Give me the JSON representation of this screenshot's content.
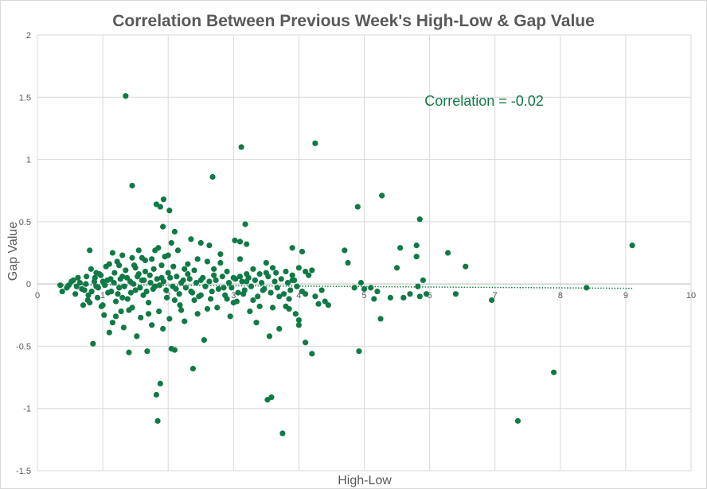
{
  "chart_data": {
    "type": "scatter",
    "title": "Correlation Between Previous Week's High-Low & Gap Value",
    "xlabel": "High-Low",
    "ylabel": "Gap Value",
    "xlim": [
      0,
      10
    ],
    "ylim": [
      -1.5,
      2
    ],
    "x_ticks": [
      "0",
      "1",
      "2",
      "3",
      "4",
      "5",
      "6",
      "7",
      "8",
      "9",
      "10"
    ],
    "y_ticks": [
      "2",
      "1.5",
      "1",
      "0.5",
      "0",
      "-0.5",
      "-1",
      "-1.5"
    ],
    "grid": "vertical and horizontal major gridlines",
    "annotation": "Correlation = -0.02",
    "colors": {
      "marker": "#107a45",
      "trendline": "#107a45",
      "grid": "#d9d9d9",
      "text": "#595959"
    },
    "trendline": {
      "type": "linear",
      "style": "dotted",
      "x": [
        0.3,
        9.1
      ],
      "y": [
        -0.005,
        -0.035
      ]
    },
    "series": [
      {
        "points": [
          [
            1.35,
            1.51
          ],
          [
            1.45,
            0.79
          ],
          [
            1.82,
            0.64
          ],
          [
            1.88,
            0.62
          ],
          [
            1.93,
            0.68
          ],
          [
            2.02,
            0.59
          ],
          [
            2.68,
            0.86
          ],
          [
            3.12,
            1.1
          ],
          [
            4.25,
            1.13
          ],
          [
            4.9,
            0.62
          ],
          [
            5.27,
            0.71
          ],
          [
            5.85,
            0.52
          ],
          [
            3.18,
            0.48
          ],
          [
            2.1,
            0.42
          ],
          [
            1.92,
            0.46
          ],
          [
            2.35,
            0.36
          ],
          [
            2.5,
            0.33
          ],
          [
            2.63,
            0.31
          ],
          [
            3.02,
            0.35
          ],
          [
            3.1,
            0.34
          ],
          [
            3.2,
            0.32
          ],
          [
            3.9,
            0.29
          ],
          [
            4.7,
            0.27
          ],
          [
            4.75,
            0.17
          ],
          [
            5.55,
            0.29
          ],
          [
            5.8,
            0.31
          ],
          [
            5.8,
            0.22
          ],
          [
            5.5,
            0.13
          ],
          [
            6.28,
            0.25
          ],
          [
            6.55,
            0.14
          ],
          [
            9.1,
            0.31
          ],
          [
            0.8,
            0.27
          ],
          [
            1.15,
            0.25
          ],
          [
            1.3,
            0.23
          ],
          [
            1.55,
            0.27
          ],
          [
            1.75,
            0.2
          ],
          [
            0.35,
            -0.01
          ],
          [
            0.38,
            -0.06
          ],
          [
            0.45,
            -0.03
          ],
          [
            0.55,
            0.03
          ],
          [
            0.6,
            -0.02
          ],
          [
            0.65,
            0.01
          ],
          [
            0.7,
            -0.17
          ],
          [
            0.72,
            -0.05
          ],
          [
            0.75,
            0.06
          ],
          [
            0.78,
            -0.09
          ],
          [
            0.8,
            -0.15
          ],
          [
            0.82,
            0.12
          ],
          [
            0.85,
            -0.48
          ],
          [
            0.88,
            0.05
          ],
          [
            0.9,
            -0.02
          ],
          [
            0.92,
            -0.11
          ],
          [
            0.95,
            0.08
          ],
          [
            0.98,
            -0.18
          ],
          [
            1.0,
            0.02
          ],
          [
            1.02,
            -0.25
          ],
          [
            1.05,
            0.14
          ],
          [
            1.08,
            -0.07
          ],
          [
            1.1,
            -0.39
          ],
          [
            1.12,
            0.04
          ],
          [
            1.15,
            -0.31
          ],
          [
            1.18,
            0.09
          ],
          [
            1.2,
            -0.14
          ],
          [
            1.22,
            0.18
          ],
          [
            1.25,
            -0.03
          ],
          [
            1.28,
            -0.22
          ],
          [
            1.3,
            0.06
          ],
          [
            1.32,
            -0.35
          ],
          [
            1.35,
            0.11
          ],
          [
            1.38,
            -0.12
          ],
          [
            1.4,
            -0.55
          ],
          [
            1.42,
            0.02
          ],
          [
            1.45,
            -0.19
          ],
          [
            1.48,
            0.15
          ],
          [
            1.5,
            -0.05
          ],
          [
            1.52,
            -0.42
          ],
          [
            1.55,
            0.08
          ],
          [
            1.58,
            -0.27
          ],
          [
            1.6,
            0.03
          ],
          [
            1.62,
            -0.09
          ],
          [
            1.65,
            0.19
          ],
          [
            1.68,
            -0.54
          ],
          [
            1.7,
            -0.15
          ],
          [
            1.72,
            0.07
          ],
          [
            1.75,
            -0.33
          ],
          [
            1.78,
            0.12
          ],
          [
            1.8,
            -0.02
          ],
          [
            1.82,
            -0.89
          ],
          [
            1.84,
            -1.1
          ],
          [
            1.86,
            -0.22
          ],
          [
            1.88,
            -0.8
          ],
          [
            1.9,
            0.05
          ],
          [
            1.92,
            -0.36
          ],
          [
            1.95,
            0.22
          ],
          [
            1.98,
            -0.11
          ],
          [
            2.0,
            0.09
          ],
          [
            2.02,
            -0.28
          ],
          [
            2.05,
            -0.52
          ],
          [
            2.08,
            0.14
          ],
          [
            2.1,
            -0.53
          ],
          [
            2.12,
            -0.04
          ],
          [
            2.15,
            0.27
          ],
          [
            2.18,
            -0.17
          ],
          [
            2.2,
            0.01
          ],
          [
            2.25,
            -0.3
          ],
          [
            2.3,
            0.16
          ],
          [
            2.35,
            -0.06
          ],
          [
            2.38,
            -0.68
          ],
          [
            2.4,
            0.11
          ],
          [
            2.45,
            -0.24
          ],
          [
            2.5,
            0.03
          ],
          [
            2.55,
            -0.45
          ],
          [
            2.6,
            0.18
          ],
          [
            2.65,
            -0.12
          ],
          [
            2.7,
            0.07
          ],
          [
            2.75,
            -0.19
          ],
          [
            2.8,
            0.24
          ],
          [
            2.85,
            -0.03
          ],
          [
            2.9,
            0.1
          ],
          [
            2.95,
            -0.26
          ],
          [
            3.0,
            0.05
          ],
          [
            3.05,
            -0.14
          ],
          [
            3.1,
            0.2
          ],
          [
            3.15,
            -0.08
          ],
          [
            3.2,
            0.02
          ],
          [
            3.25,
            -0.22
          ],
          [
            3.3,
            0.12
          ],
          [
            3.35,
            -0.31
          ],
          [
            3.4,
            0.08
          ],
          [
            3.45,
            -0.05
          ],
          [
            3.5,
            0.17
          ],
          [
            3.52,
            -0.93
          ],
          [
            3.55,
            -0.42
          ],
          [
            3.58,
            -0.91
          ],
          [
            3.6,
            -0.19
          ],
          [
            3.65,
            0.09
          ],
          [
            3.7,
            -0.36
          ],
          [
            3.75,
            -1.2
          ],
          [
            3.8,
            0.1
          ],
          [
            3.85,
            -0.12
          ],
          [
            3.9,
            0.03
          ],
          [
            3.95,
            -0.24
          ],
          [
            4.0,
            0.13
          ],
          [
            4.05,
            -0.06
          ],
          [
            4.1,
            0.1
          ],
          [
            4.1,
            -0.47
          ],
          [
            4.15,
            0.07
          ],
          [
            4.2,
            -0.56
          ],
          [
            4.25,
            -0.1
          ],
          [
            4.3,
            -0.16
          ],
          [
            4.35,
            -0.05
          ],
          [
            4.4,
            -0.14
          ],
          [
            4.45,
            -0.17
          ],
          [
            4.85,
            -0.03
          ],
          [
            4.95,
            0.01
          ],
          [
            5.0,
            -0.04
          ],
          [
            5.1,
            -0.03
          ],
          [
            5.15,
            -0.12
          ],
          [
            5.2,
            -0.06
          ],
          [
            4.92,
            -0.54
          ],
          [
            5.25,
            -0.28
          ],
          [
            5.4,
            -0.11
          ],
          [
            5.6,
            -0.11
          ],
          [
            5.7,
            -0.08
          ],
          [
            5.85,
            -0.1
          ],
          [
            5.95,
            -0.08
          ],
          [
            5.9,
            0.03
          ],
          [
            5.82,
            -0.02
          ],
          [
            6.4,
            -0.08
          ],
          [
            6.95,
            -0.13
          ],
          [
            7.35,
            -1.1
          ],
          [
            7.9,
            -0.71
          ],
          [
            8.4,
            -0.03
          ],
          [
            0.48,
            -0.01
          ],
          [
            0.52,
            0.02
          ],
          [
            0.58,
            -0.08
          ],
          [
            0.62,
            0.05
          ],
          [
            0.68,
            -0.04
          ],
          [
            0.74,
            0.0
          ],
          [
            0.77,
            -0.13
          ],
          [
            0.83,
            -0.06
          ],
          [
            0.87,
            0.02
          ],
          [
            0.93,
            -0.03
          ],
          [
            0.97,
            0.07
          ],
          [
            1.03,
            -0.01
          ],
          [
            1.07,
            0.03
          ],
          [
            1.13,
            -0.06
          ],
          [
            1.17,
            0.01
          ],
          [
            1.23,
            -0.08
          ],
          [
            1.27,
            0.04
          ],
          [
            1.33,
            -0.02
          ],
          [
            1.37,
            0.05
          ],
          [
            1.43,
            -0.07
          ],
          [
            1.47,
            0.0
          ],
          [
            1.53,
            0.06
          ],
          [
            1.57,
            -0.03
          ],
          [
            1.63,
            0.03
          ],
          [
            1.67,
            -0.06
          ],
          [
            1.73,
            0.01
          ],
          [
            1.77,
            -0.04
          ],
          [
            1.83,
            0.04
          ],
          [
            1.87,
            -0.01
          ],
          [
            1.93,
            0.02
          ],
          [
            1.97,
            -0.05
          ],
          [
            2.03,
            0.05
          ],
          [
            2.07,
            -0.02
          ],
          [
            2.13,
            0.06
          ],
          [
            2.17,
            -0.08
          ],
          [
            2.23,
            0.03
          ],
          [
            2.27,
            -0.03
          ],
          [
            2.33,
            0.04
          ],
          [
            2.37,
            -0.07
          ],
          [
            2.43,
            0.01
          ],
          [
            2.47,
            -0.1
          ],
          [
            2.53,
            0.05
          ],
          [
            2.57,
            -0.02
          ],
          [
            2.63,
            0.02
          ],
          [
            2.67,
            -0.06
          ],
          [
            2.73,
            0.03
          ],
          [
            2.77,
            -0.04
          ],
          [
            2.83,
            0.06
          ],
          [
            2.87,
            -0.09
          ],
          [
            2.93,
            0.01
          ],
          [
            2.97,
            -0.03
          ],
          [
            3.03,
            0.04
          ],
          [
            3.07,
            -0.07
          ],
          [
            3.13,
            0.02
          ],
          [
            3.17,
            -0.05
          ],
          [
            3.23,
            0.05
          ],
          [
            3.27,
            -0.02
          ],
          [
            3.33,
            0.03
          ],
          [
            3.37,
            -0.1
          ],
          [
            3.43,
            0.01
          ],
          [
            3.47,
            -0.04
          ],
          [
            3.53,
            0.06
          ],
          [
            3.57,
            -0.07
          ],
          [
            3.63,
            0.02
          ],
          [
            3.67,
            -0.03
          ],
          [
            3.73,
            0.04
          ],
          [
            3.77,
            -0.08
          ],
          [
            3.83,
            0.01
          ],
          [
            3.87,
            -0.05
          ],
          [
            3.93,
            0.03
          ],
          [
            3.97,
            -0.02
          ],
          [
            1.0,
            -0.17
          ],
          [
            1.2,
            -0.26
          ],
          [
            1.4,
            -0.21
          ],
          [
            1.6,
            0.21
          ],
          [
            1.8,
            0.27
          ],
          [
            2.0,
            0.23
          ],
          [
            2.2,
            -0.21
          ],
          [
            2.4,
            -0.13
          ],
          [
            2.6,
            -0.2
          ],
          [
            2.8,
            0.17
          ],
          [
            3.0,
            -0.15
          ],
          [
            3.2,
            0.08
          ],
          [
            3.4,
            -0.18
          ],
          [
            3.6,
            0.13
          ],
          [
            3.8,
            -0.18
          ],
          [
            4.0,
            -0.29
          ],
          [
            4.0,
            -0.33
          ],
          [
            3.85,
            -0.2
          ],
          [
            4.05,
            0.26
          ],
          [
            1.25,
            0.15
          ],
          [
            1.45,
            0.21
          ],
          [
            1.65,
            0.1
          ],
          [
            1.85,
            0.29
          ],
          [
            2.05,
            0.33
          ],
          [
            2.25,
            0.12
          ],
          [
            2.45,
            0.2
          ],
          [
            0.9,
            0.09
          ],
          [
            1.1,
            0.16
          ],
          [
            1.3,
            -0.11
          ],
          [
            1.5,
            0.13
          ],
          [
            1.7,
            -0.24
          ],
          [
            1.9,
            0.15
          ],
          [
            2.1,
            -0.13
          ],
          [
            2.3,
            0.08
          ],
          [
            2.5,
            -0.09
          ],
          [
            2.7,
            0.12
          ],
          [
            2.9,
            -0.12
          ],
          [
            3.1,
            0.06
          ],
          [
            3.3,
            -0.13
          ],
          [
            3.5,
            0.09
          ],
          [
            3.7,
            -0.1
          ],
          [
            3.9,
            0.07
          ],
          [
            4.1,
            -0.08
          ],
          [
            4.2,
            0.11
          ]
        ]
      }
    ]
  }
}
